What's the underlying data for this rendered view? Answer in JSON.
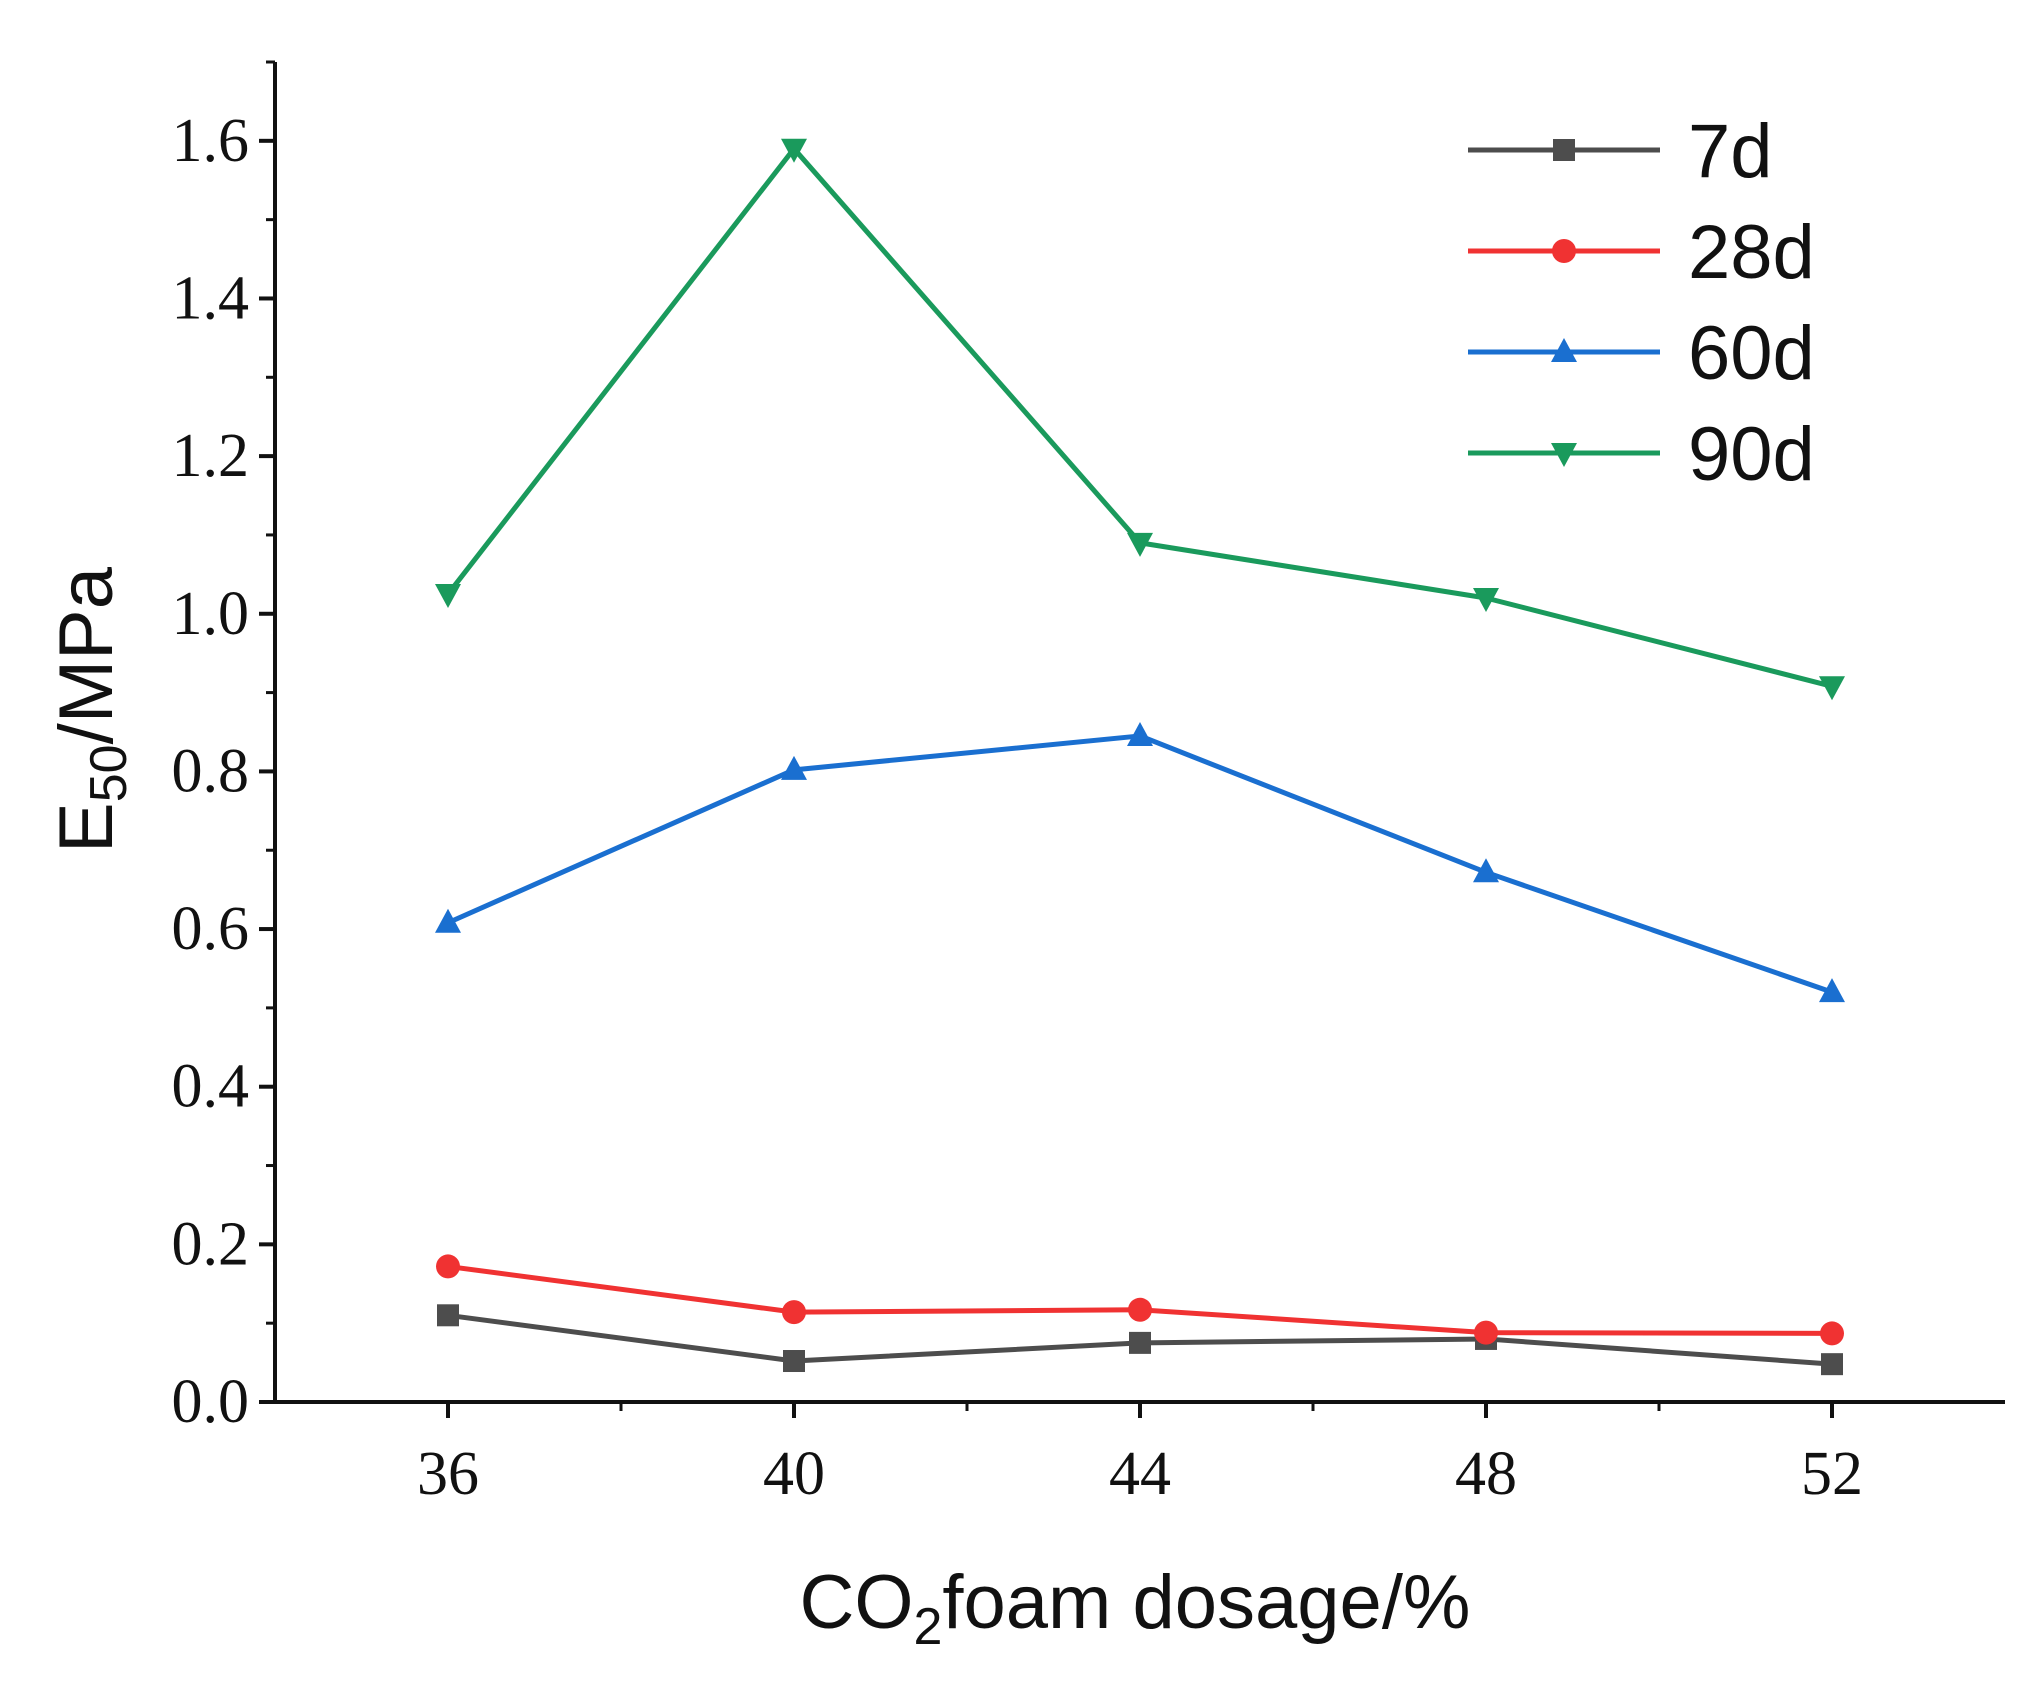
{
  "chart_data": {
    "type": "line",
    "title": "",
    "xlabel": {
      "main": "CO",
      "sub": "2",
      "rest": "foam dosage/%"
    },
    "ylabel": {
      "main": "E",
      "sub": "50",
      "rest": "/MPa"
    },
    "x": [
      36,
      40,
      44,
      48,
      52
    ],
    "xlim": [
      34,
      54
    ],
    "xticks": [
      36,
      40,
      44,
      48,
      52
    ],
    "xtick_labels": [
      "36",
      "40",
      "44",
      "48",
      "52"
    ],
    "ylim": [
      0.0,
      1.7
    ],
    "yticks": [
      0.0,
      0.2,
      0.4,
      0.6,
      0.8,
      1.0,
      1.2,
      1.4,
      1.6
    ],
    "ytick_labels": [
      "0.0",
      "0.2",
      "0.4",
      "0.6",
      "0.8",
      "1.0",
      "1.2",
      "1.4",
      "1.6"
    ],
    "grid": false,
    "legend_position": "top-right",
    "series": [
      {
        "name": "7d",
        "color": "#4d4d4d",
        "marker": "square",
        "values": [
          0.11,
          0.052,
          0.075,
          0.08,
          0.048
        ]
      },
      {
        "name": "28d",
        "color": "#f03232",
        "marker": "circle",
        "values": [
          0.172,
          0.114,
          0.117,
          0.088,
          0.087
        ]
      },
      {
        "name": "60d",
        "color": "#1a6fd0",
        "marker": "triangle-up",
        "values": [
          0.608,
          0.802,
          0.845,
          0.672,
          0.52
        ]
      },
      {
        "name": "90d",
        "color": "#1a9a5c",
        "marker": "triangle-down",
        "values": [
          1.025,
          1.59,
          1.09,
          1.02,
          0.908
        ]
      }
    ]
  }
}
